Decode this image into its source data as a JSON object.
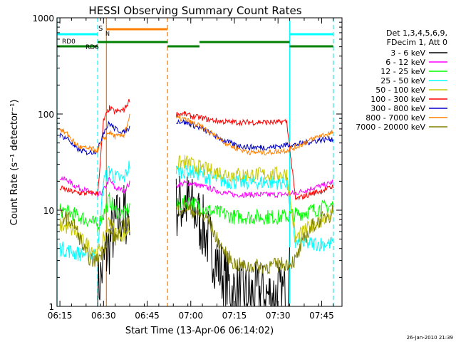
{
  "chart_data": {
    "type": "line",
    "title": "HESSI Observing Summary Count Rates",
    "xlabel": "Start Time (13-Apr-06 06:14:02)",
    "ylabel": "Count Rate (s⁻¹ detector⁻¹)",
    "yscale": "log",
    "ylim": [
      1,
      1000
    ],
    "xlim": [
      "06:14",
      "07:52"
    ],
    "x_ticks": [
      "06:15",
      "06:30",
      "06:45",
      "07:00",
      "07:15",
      "07:30",
      "07:45"
    ],
    "y_ticks": [
      "1",
      "10",
      "100",
      "1000"
    ],
    "timestamp": "26-Jan-2010 21:39",
    "legend_placement": "right",
    "legend_header": [
      "Det 1,3,4,5,6,9,",
      "FDecim 1, Att 0"
    ],
    "flags": [
      "RD0",
      "RD6",
      "S",
      "N"
    ],
    "vertical_markers": [
      {
        "time": "06:14",
        "color": "#00ffff",
        "style": "solid"
      },
      {
        "time": "06:28",
        "color": "#00ffff",
        "style": "dashed"
      },
      {
        "time": "06:31",
        "color": "#ff8000",
        "style": "solid"
      },
      {
        "time": "06:52",
        "color": "#ff8000",
        "style": "dashed"
      },
      {
        "time": "07:34",
        "color": "#00ffff",
        "style": "solid"
      },
      {
        "time": "07:49",
        "color": "#00ffff",
        "style": "dashed"
      }
    ],
    "gaps": [
      [
        "06:39",
        "06:55"
      ]
    ],
    "series": [
      {
        "name": "3 - 6 keV",
        "color": "#000000",
        "x": [
          "06:28",
          "06:31",
          "06:34",
          "06:37",
          "06:39",
          "06:55",
          "06:58",
          "07:00",
          "07:03",
          "07:06",
          "07:09",
          "07:12",
          "07:15",
          "07:18",
          "07:21",
          "07:24",
          "07:27",
          "07:30",
          "07:33",
          "07:34"
        ],
        "values": [
          1.5,
          3.5,
          7,
          9,
          9,
          11,
          12,
          11,
          8,
          5,
          3,
          1.8,
          1.4,
          1.3,
          1.3,
          1.3,
          1.3,
          1.3,
          1.4,
          2
        ]
      },
      {
        "name": "6 - 12 keV",
        "color": "#ff00ff",
        "x": [
          "06:15",
          "06:18",
          "06:20",
          "06:22",
          "06:24",
          "06:26",
          "06:28",
          "06:30",
          "06:32",
          "06:34",
          "06:37",
          "06:39",
          "06:55",
          "06:58",
          "07:00",
          "07:03",
          "07:06",
          "07:09",
          "07:12",
          "07:15",
          "07:18",
          "07:21",
          "07:24",
          "07:27",
          "07:30",
          "07:33",
          "07:36",
          "07:39",
          "07:42",
          "07:45",
          "07:48",
          "07:49"
        ],
        "values": [
          22,
          20,
          18,
          17,
          16,
          15,
          14,
          16,
          21,
          17,
          16,
          19,
          18,
          19,
          19,
          18,
          17,
          16,
          15,
          14.5,
          14.5,
          14.5,
          14.5,
          14.5,
          14.5,
          14.7,
          15,
          16,
          17,
          18,
          19,
          20
        ]
      },
      {
        "name": "12 - 25 keV",
        "color": "#00ff00",
        "x": [
          "06:15",
          "06:18",
          "06:20",
          "06:22",
          "06:24",
          "06:26",
          "06:28",
          "06:30",
          "06:32",
          "06:34",
          "06:37",
          "06:39",
          "06:55",
          "06:58",
          "07:00",
          "07:03",
          "07:06",
          "07:09",
          "07:12",
          "07:15",
          "07:18",
          "07:21",
          "07:24",
          "07:27",
          "07:30",
          "07:33",
          "07:36",
          "07:39",
          "07:42",
          "07:45",
          "07:48",
          "07:49"
        ],
        "values": [
          10,
          9.5,
          9,
          8.5,
          8,
          7.5,
          7,
          9,
          13,
          10,
          9,
          11,
          11,
          12,
          12,
          11,
          10,
          9.5,
          9,
          8.5,
          8.5,
          8.5,
          8.5,
          8.5,
          8.5,
          8.7,
          9,
          9.5,
          10,
          10.5,
          11,
          11.5
        ]
      },
      {
        "name": "25 - 50 keV",
        "color": "#00ffff",
        "x": [
          "06:15",
          "06:18",
          "06:20",
          "06:22",
          "06:24",
          "06:26",
          "06:28",
          "06:30",
          "06:32",
          "06:34",
          "06:37",
          "06:39",
          "06:55",
          "06:58",
          "07:00",
          "07:03",
          "07:06",
          "07:09",
          "07:12",
          "07:15",
          "07:18",
          "07:21",
          "07:24",
          "07:27",
          "07:30",
          "07:33",
          "07:36",
          "07:39",
          "07:42",
          "07:45",
          "07:48",
          "07:49"
        ],
        "values": [
          4,
          3.8,
          3.6,
          3.5,
          3.5,
          3.5,
          3.5,
          20,
          26,
          22,
          21,
          30,
          25,
          26,
          25,
          24,
          22,
          21,
          20,
          19.5,
          19.5,
          19.5,
          19.5,
          19.5,
          19.5,
          19.8,
          4.5,
          4.5,
          4.5,
          4.5,
          4.5,
          4.5
        ]
      },
      {
        "name": "50 - 100 keV",
        "color": "#c8c800",
        "x": [
          "06:15",
          "06:18",
          "06:20",
          "06:22",
          "06:24",
          "06:26",
          "06:28",
          "06:30",
          "06:32",
          "06:34",
          "06:37",
          "06:39",
          "06:55",
          "06:58",
          "07:00",
          "07:03",
          "07:06",
          "07:09",
          "07:12",
          "07:15",
          "07:18",
          "07:21",
          "07:24",
          "07:27",
          "07:30",
          "07:33",
          "07:36",
          "07:39",
          "07:42",
          "07:45",
          "07:48",
          "07:49"
        ],
        "values": [
          7,
          6.5,
          6,
          5,
          4.5,
          4,
          3.5,
          5,
          8,
          6,
          5.5,
          6.5,
          30,
          32,
          30,
          28,
          26,
          25,
          24,
          23.5,
          23.5,
          23.5,
          23.5,
          23.5,
          23.5,
          24,
          5,
          6,
          7,
          8,
          9,
          10
        ]
      },
      {
        "name": "100 - 300 keV",
        "color": "#ff0000",
        "x": [
          "06:15",
          "06:18",
          "06:20",
          "06:22",
          "06:24",
          "06:26",
          "06:28",
          "06:30",
          "06:32",
          "06:34",
          "06:37",
          "06:39",
          "06:55",
          "06:58",
          "07:00",
          "07:03",
          "07:06",
          "07:09",
          "07:12",
          "07:15",
          "07:18",
          "07:21",
          "07:24",
          "07:27",
          "07:30",
          "07:33",
          "07:36",
          "07:39",
          "07:42",
          "07:45",
          "07:48",
          "07:49"
        ],
        "values": [
          17,
          16,
          15.5,
          15,
          15,
          15,
          15,
          85,
          115,
          105,
          110,
          140,
          100,
          100,
          95,
          92,
          88,
          85,
          83,
          82,
          82,
          82,
          82,
          82,
          82,
          84,
          13,
          14,
          15,
          16,
          17,
          18
        ]
      },
      {
        "name": "300 - 800 keV",
        "color": "#0000c8",
        "x": [
          "06:15",
          "06:18",
          "06:20",
          "06:22",
          "06:24",
          "06:26",
          "06:28",
          "06:30",
          "06:32",
          "06:34",
          "06:37",
          "06:39",
          "06:55",
          "06:58",
          "07:00",
          "07:03",
          "07:06",
          "07:09",
          "07:12",
          "07:15",
          "07:18",
          "07:21",
          "07:24",
          "07:27",
          "07:30",
          "07:33",
          "07:36",
          "07:39",
          "07:42",
          "07:45",
          "07:48",
          "07:49"
        ],
        "values": [
          60,
          55,
          45,
          42,
          40,
          40,
          42,
          65,
          80,
          70,
          65,
          72,
          85,
          82,
          78,
          72,
          65,
          58,
          52,
          48,
          46,
          45,
          45,
          45,
          46,
          48,
          48,
          50,
          52,
          54,
          55,
          55
        ]
      },
      {
        "name": "800 - 7000 keV",
        "color": "#ff8000",
        "x": [
          "06:15",
          "06:18",
          "06:20",
          "06:22",
          "06:24",
          "06:26",
          "06:28",
          "06:30",
          "06:32",
          "06:34",
          "06:37",
          "06:39",
          "06:55",
          "06:58",
          "07:00",
          "07:03",
          "07:06",
          "07:09",
          "07:12",
          "07:15",
          "07:18",
          "07:21",
          "07:24",
          "07:27",
          "07:30",
          "07:33",
          "07:36",
          "07:39",
          "07:42",
          "07:45",
          "07:48",
          "07:49"
        ],
        "values": [
          70,
          60,
          50,
          45,
          44,
          43,
          42,
          55,
          65,
          58,
          60,
          95,
          90,
          88,
          82,
          75,
          66,
          58,
          50,
          45,
          42,
          40,
          40,
          40,
          41,
          42,
          45,
          50,
          55,
          60,
          63,
          65
        ]
      },
      {
        "name": "7000 - 20000 keV",
        "color": "#808000",
        "x": [
          "06:15",
          "06:18",
          "06:20",
          "06:22",
          "06:24",
          "06:26",
          "06:28",
          "06:30",
          "06:32",
          "06:34",
          "06:37",
          "06:39",
          "06:55",
          "06:58",
          "07:00",
          "07:03",
          "07:06",
          "07:09",
          "07:12",
          "07:15",
          "07:18",
          "07:21",
          "07:24",
          "07:27",
          "07:30",
          "07:33",
          "07:36",
          "07:39",
          "07:42",
          "07:45",
          "07:48",
          "07:49"
        ],
        "values": [
          9,
          8,
          7,
          5,
          3.5,
          3,
          3,
          4,
          6,
          5,
          7,
          8,
          10,
          11,
          10,
          9,
          8,
          5,
          3.5,
          2.8,
          2.6,
          2.6,
          2.6,
          2.6,
          2.7,
          2.8,
          3,
          5,
          7,
          8,
          9,
          10
        ]
      }
    ]
  }
}
